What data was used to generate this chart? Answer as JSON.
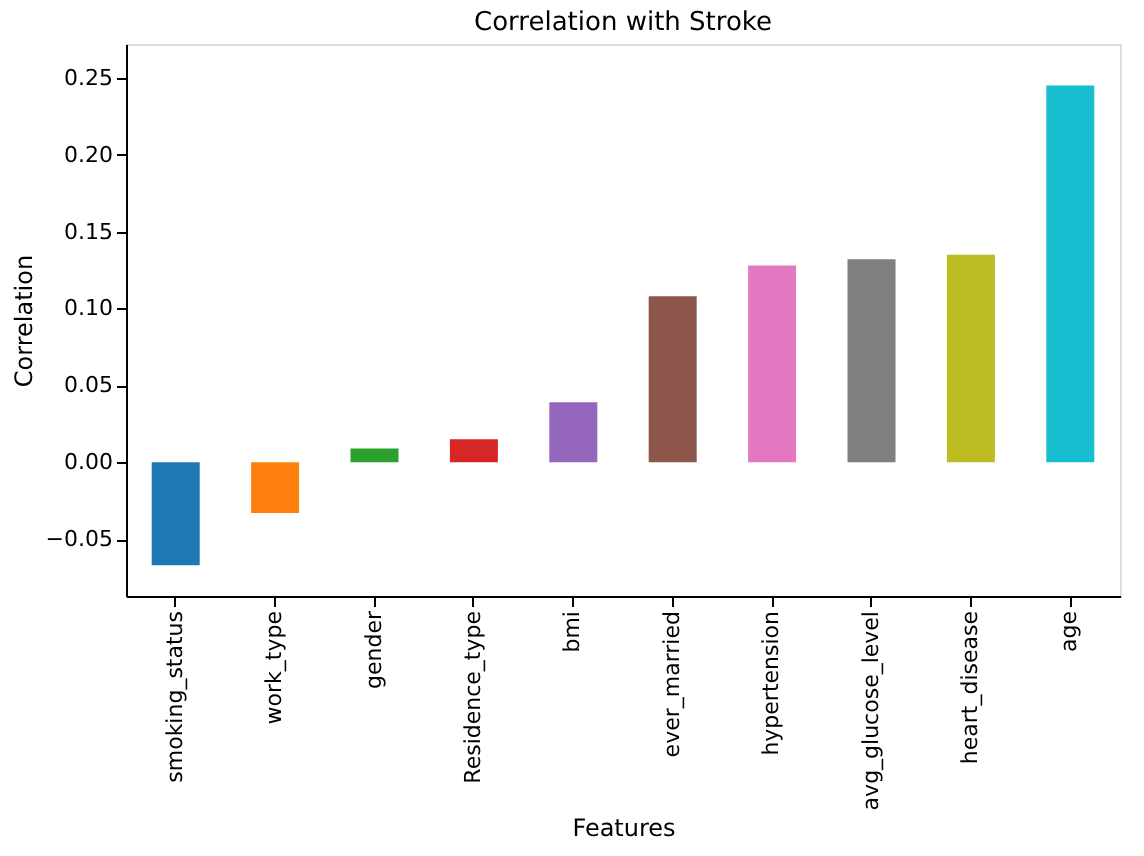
{
  "chart_data": {
    "type": "bar",
    "title": "Correlation with Stroke",
    "xlabel": "Features",
    "ylabel": "Correlation",
    "categories": [
      "smoking_status",
      "work_type",
      "gender",
      "Residence_type",
      "bmi",
      "ever_married",
      "hypertension",
      "avg_glucose_level",
      "heart_disease",
      "age"
    ],
    "values": [
      -0.067,
      -0.033,
      0.009,
      0.015,
      0.039,
      0.108,
      0.128,
      0.132,
      0.135,
      0.245
    ],
    "colors": [
      "#1f77b4",
      "#ff7f0e",
      "#2ca02c",
      "#d62728",
      "#9467bd",
      "#8c564b",
      "#e377c2",
      "#7f7f7f",
      "#bcbd22",
      "#17becf"
    ],
    "ylim": [
      -0.087,
      0.272
    ],
    "yticks": [
      {
        "value": -0.05,
        "label": "−0.05"
      },
      {
        "value": 0,
        "label": "0.00"
      },
      {
        "value": 0.05,
        "label": "0.05"
      },
      {
        "value": 0.1,
        "label": "0.10"
      },
      {
        "value": 0.15,
        "label": "0.15"
      },
      {
        "value": 0.2,
        "label": "0.20"
      },
      {
        "value": 0.25,
        "label": "0.25"
      }
    ],
    "grid": false
  }
}
